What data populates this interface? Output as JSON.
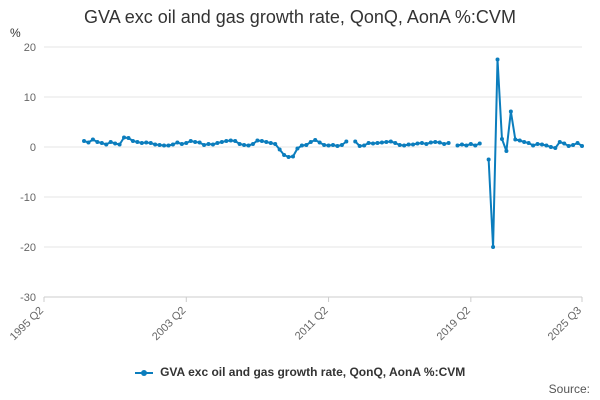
{
  "chart_data": {
    "type": "line",
    "title": "GVA exc oil and gas growth rate, QonQ, AonA %:CVM",
    "ylabel": "%",
    "xlabel": "",
    "ylim": [
      -30,
      20
    ],
    "yticks": [
      20,
      10,
      0,
      -10,
      -20,
      -30
    ],
    "xtick_labels": [
      "1995 Q2",
      "2003 Q2",
      "2011 Q2",
      "2019 Q2",
      "2025 Q3"
    ],
    "grid": "horizontal",
    "legend_position": "bottom",
    "series": [
      {
        "name": "GVA exc oil and gas growth rate, QonQ, AonA %:CVM",
        "color": "#0b7dbd",
        "points": [
          {
            "x": "1997 Q3",
            "y": 1.2
          },
          {
            "x": "1997 Q4",
            "y": 0.9
          },
          {
            "x": "1998 Q1",
            "y": 1.5
          },
          {
            "x": "1998 Q2",
            "y": 1.0
          },
          {
            "x": "1998 Q3",
            "y": 0.8
          },
          {
            "x": "1998 Q4",
            "y": 0.5
          },
          {
            "x": "1999 Q1",
            "y": 1.0
          },
          {
            "x": "1999 Q2",
            "y": 0.7
          },
          {
            "x": "1999 Q3",
            "y": 0.5
          },
          {
            "x": "1999 Q4",
            "y": 1.9
          },
          {
            "x": "2000 Q1",
            "y": 1.8
          },
          {
            "x": "2000 Q2",
            "y": 1.2
          },
          {
            "x": "2000 Q3",
            "y": 1.0
          },
          {
            "x": "2000 Q4",
            "y": 0.8
          },
          {
            "x": "2001 Q1",
            "y": 0.9
          },
          {
            "x": "2001 Q2",
            "y": 0.8
          },
          {
            "x": "2001 Q3",
            "y": 0.5
          },
          {
            "x": "2001 Q4",
            "y": 0.4
          },
          {
            "x": "2002 Q1",
            "y": 0.3
          },
          {
            "x": "2002 Q2",
            "y": 0.3
          },
          {
            "x": "2002 Q3",
            "y": 0.5
          },
          {
            "x": "2002 Q4",
            "y": 0.9
          },
          {
            "x": "2003 Q1",
            "y": 0.6
          },
          {
            "x": "2003 Q2",
            "y": 0.8
          },
          {
            "x": "2003 Q3",
            "y": 1.2
          },
          {
            "x": "2003 Q4",
            "y": 1.0
          },
          {
            "x": "2004 Q1",
            "y": 0.9
          },
          {
            "x": "2004 Q2",
            "y": 0.4
          },
          {
            "x": "2004 Q3",
            "y": 0.6
          },
          {
            "x": "2004 Q4",
            "y": 0.5
          },
          {
            "x": "2005 Q1",
            "y": 0.8
          },
          {
            "x": "2005 Q2",
            "y": 1.0
          },
          {
            "x": "2005 Q3",
            "y": 1.2
          },
          {
            "x": "2005 Q4",
            "y": 1.3
          },
          {
            "x": "2006 Q1",
            "y": 1.2
          },
          {
            "x": "2006 Q2",
            "y": 0.6
          },
          {
            "x": "2006 Q3",
            "y": 0.4
          },
          {
            "x": "2006 Q4",
            "y": 0.3
          },
          {
            "x": "2007 Q1",
            "y": 0.6
          },
          {
            "x": "2007 Q2",
            "y": 1.3
          },
          {
            "x": "2007 Q3",
            "y": 1.2
          },
          {
            "x": "2007 Q4",
            "y": 1.0
          },
          {
            "x": "2008 Q1",
            "y": 0.8
          },
          {
            "x": "2008 Q2",
            "y": 0.6
          },
          {
            "x": "2008 Q3",
            "y": -0.5
          },
          {
            "x": "2008 Q4",
            "y": -1.6
          },
          {
            "x": "2009 Q1",
            "y": -2.0
          },
          {
            "x": "2009 Q2",
            "y": -1.9
          },
          {
            "x": "2009 Q3",
            "y": -0.3
          },
          {
            "x": "2009 Q4",
            "y": 0.3
          },
          {
            "x": "2010 Q1",
            "y": 0.4
          },
          {
            "x": "2010 Q2",
            "y": 1.0
          },
          {
            "x": "2010 Q3",
            "y": 1.4
          },
          {
            "x": "2010 Q4",
            "y": 0.9
          },
          {
            "x": "2011 Q1",
            "y": 0.4
          },
          {
            "x": "2011 Q2",
            "y": 0.3
          },
          {
            "x": "2011 Q3",
            "y": 0.4
          },
          {
            "x": "2011 Q4",
            "y": 0.2
          },
          {
            "x": "2012 Q1",
            "y": 0.4
          },
          {
            "x": "2012 Q2",
            "y": 1.1
          },
          {
            "x": "2012 Q3",
            "y": null
          },
          {
            "x": "2012 Q4",
            "y": 1.1
          },
          {
            "x": "2013 Q1",
            "y": 0.2
          },
          {
            "x": "2013 Q2",
            "y": 0.3
          },
          {
            "x": "2013 Q3",
            "y": 0.8
          },
          {
            "x": "2013 Q4",
            "y": 0.7
          },
          {
            "x": "2014 Q1",
            "y": 0.8
          },
          {
            "x": "2014 Q2",
            "y": 0.9
          },
          {
            "x": "2014 Q3",
            "y": 1.0
          },
          {
            "x": "2014 Q4",
            "y": 1.1
          },
          {
            "x": "2015 Q1",
            "y": 0.8
          },
          {
            "x": "2015 Q2",
            "y": 0.4
          },
          {
            "x": "2015 Q3",
            "y": 0.3
          },
          {
            "x": "2015 Q4",
            "y": 0.5
          },
          {
            "x": "2016 Q1",
            "y": 0.5
          },
          {
            "x": "2016 Q2",
            "y": 0.7
          },
          {
            "x": "2016 Q3",
            "y": 0.8
          },
          {
            "x": "2016 Q4",
            "y": 0.6
          },
          {
            "x": "2017 Q1",
            "y": 0.9
          },
          {
            "x": "2017 Q2",
            "y": 1.0
          },
          {
            "x": "2017 Q3",
            "y": 0.9
          },
          {
            "x": "2017 Q4",
            "y": 0.6
          },
          {
            "x": "2018 Q1",
            "y": 0.8
          },
          {
            "x": "2018 Q2",
            "y": null
          },
          {
            "x": "2018 Q3",
            "y": 0.3
          },
          {
            "x": "2018 Q4",
            "y": 0.5
          },
          {
            "x": "2019 Q1",
            "y": 0.3
          },
          {
            "x": "2019 Q2",
            "y": 0.6
          },
          {
            "x": "2019 Q3",
            "y": 0.3
          },
          {
            "x": "2019 Q4",
            "y": 0.7
          },
          {
            "x": "2020 Q1",
            "y": null
          },
          {
            "x": "2020 Q2",
            "y": -2.5
          },
          {
            "x": "2020 Q3",
            "y": -20.0
          },
          {
            "x": "2020 Q4",
            "y": 17.5
          },
          {
            "x": "2021 Q1",
            "y": 1.6
          },
          {
            "x": "2021 Q2",
            "y": -0.8
          },
          {
            "x": "2021 Q3",
            "y": 7.1
          },
          {
            "x": "2021 Q4",
            "y": 1.5
          },
          {
            "x": "2022 Q1",
            "y": 1.3
          },
          {
            "x": "2022 Q2",
            "y": 1.0
          },
          {
            "x": "2022 Q3",
            "y": 0.8
          },
          {
            "x": "2022 Q4",
            "y": 0.3
          },
          {
            "x": "2023 Q1",
            "y": 0.6
          },
          {
            "x": "2023 Q2",
            "y": 0.5
          },
          {
            "x": "2023 Q3",
            "y": 0.3
          },
          {
            "x": "2023 Q4",
            "y": 0.0
          },
          {
            "x": "2024 Q1",
            "y": -0.2
          },
          {
            "x": "2024 Q2",
            "y": 1.0
          },
          {
            "x": "2024 Q3",
            "y": 0.7
          },
          {
            "x": "2024 Q4",
            "y": 0.2
          },
          {
            "x": "2025 Q1",
            "y": 0.4
          },
          {
            "x": "2025 Q2",
            "y": 0.8
          },
          {
            "x": "2025 Q3",
            "y": 0.2
          }
        ]
      }
    ]
  },
  "legend": {
    "label": "GVA exc oil and gas growth rate, QonQ, AonA %:CVM"
  },
  "source": "Source:"
}
